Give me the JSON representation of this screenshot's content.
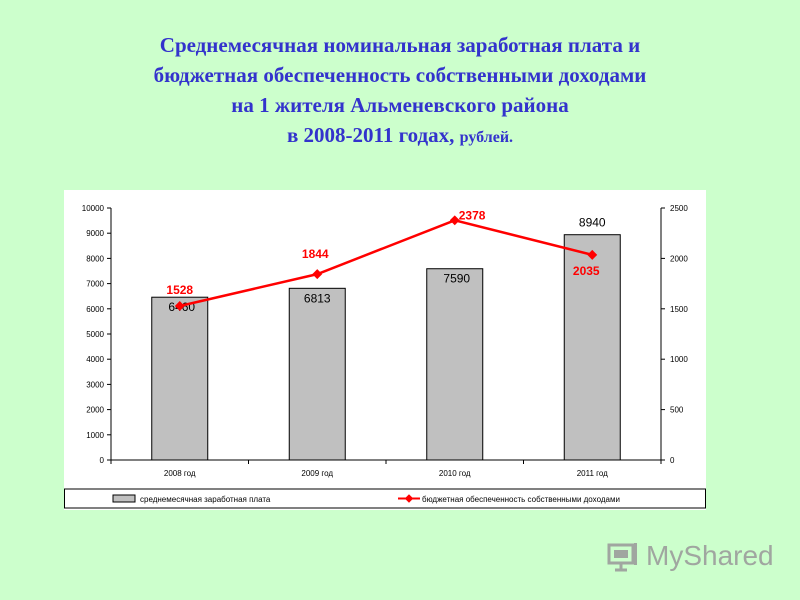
{
  "title": {
    "line1": "Среднемесячная номинальная заработная плата и",
    "line2": "бюджетная обеспеченность собственными доходами",
    "line3": "на 1 жителя Альменевского района",
    "line4": "в 2008-2011 годах,",
    "unit": "рублей."
  },
  "chart_data": {
    "type": "bar",
    "categories": [
      "2008 год",
      "2009 год",
      "2010 год",
      "2011 год"
    ],
    "series": [
      {
        "name": "среднемесячная заработная плата",
        "type": "bar",
        "axis": "left",
        "values": [
          6460,
          6813,
          7590,
          8940
        ],
        "labels": [
          "6460",
          "6813",
          "7590",
          "8940"
        ],
        "color": "#c0c0c0"
      },
      {
        "name": "бюджетная обеспеченность собственными доходами",
        "type": "line",
        "axis": "right",
        "values": [
          1528,
          1844,
          2378,
          2035
        ],
        "labels": [
          "1528",
          "1844",
          "2378",
          "2035"
        ],
        "color": "#ff0000"
      }
    ],
    "y_left": {
      "lim": [
        0,
        10000
      ],
      "ticks": [
        "0",
        "1000",
        "2000",
        "3000",
        "4000",
        "5000",
        "6000",
        "7000",
        "8000",
        "9000",
        "10000"
      ]
    },
    "y_right": {
      "lim": [
        0,
        2500
      ],
      "ticks": [
        "0",
        "500",
        "1000",
        "1500",
        "2000",
        "2500"
      ]
    },
    "grid": false,
    "legend": "bottom"
  },
  "watermark": {
    "text": "MyShared",
    "icon": "presentation-board-icon"
  }
}
